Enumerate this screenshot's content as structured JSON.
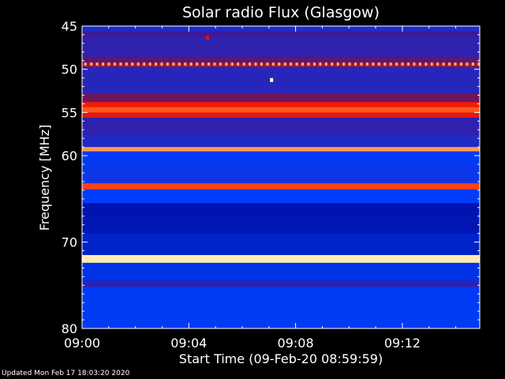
{
  "chart_data": {
    "type": "heatmap",
    "title": "Solar radio Flux (Glasgow)",
    "xlabel": "Start Time (09-Feb-20 08:59:59)",
    "ylabel": "Frequency [MHz]",
    "ylim": [
      45,
      80
    ],
    "y_inverted": true,
    "y_ticks": [
      "45",
      "50",
      "55",
      "60",
      "70",
      "80"
    ],
    "x_ticks": [
      "09:00",
      "09:04",
      "09:08",
      "09:12"
    ],
    "x_tick_minutes": [
      0,
      4,
      8,
      12
    ],
    "x_range_minutes": [
      0,
      14.9
    ],
    "grid": false,
    "colormap": [
      "#00008c",
      "#0040ff",
      "#3a1a9a",
      "#8a1040",
      "#ff1e00",
      "#ff9040",
      "#ffffc8"
    ],
    "bands": [
      {
        "from": 45.0,
        "to": 45.6,
        "level": 0.25
      },
      {
        "from": 45.6,
        "to": 46.3,
        "level": 0.33
      },
      {
        "from": 46.3,
        "to": 48.6,
        "level": 0.3
      },
      {
        "from": 48.6,
        "to": 49.3,
        "level": 0.42
      },
      {
        "from": 49.3,
        "to": 49.7,
        "level": 0.55
      },
      {
        "from": 49.7,
        "to": 52.8,
        "level": 0.28
      },
      {
        "from": 52.8,
        "to": 53.8,
        "level": 0.45
      },
      {
        "from": 53.8,
        "to": 54.4,
        "level": 0.65
      },
      {
        "from": 54.4,
        "to": 55.0,
        "level": 0.75
      },
      {
        "from": 55.0,
        "to": 55.6,
        "level": 0.62
      },
      {
        "from": 55.6,
        "to": 57.6,
        "level": 0.3
      },
      {
        "from": 57.6,
        "to": 59.0,
        "level": 0.26
      },
      {
        "from": 59.0,
        "to": 59.5,
        "level": 0.85
      },
      {
        "from": 59.5,
        "to": 61.0,
        "level": 0.15
      },
      {
        "from": 61.0,
        "to": 62.5,
        "level": 0.2
      },
      {
        "from": 62.5,
        "to": 63.2,
        "level": 0.22
      },
      {
        "from": 63.2,
        "to": 63.9,
        "level": 0.72
      },
      {
        "from": 63.9,
        "to": 65.5,
        "level": 0.16
      },
      {
        "from": 65.5,
        "to": 67.0,
        "level": 0.05
      },
      {
        "from": 67.0,
        "to": 69.0,
        "level": 0.06
      },
      {
        "from": 69.0,
        "to": 71.5,
        "level": 0.09
      },
      {
        "from": 71.5,
        "to": 72.4,
        "level": 0.97
      },
      {
        "from": 72.4,
        "to": 74.5,
        "level": 0.13
      },
      {
        "from": 74.5,
        "to": 75.2,
        "level": 0.3
      },
      {
        "from": 75.2,
        "to": 80.0,
        "level": 0.15
      }
    ],
    "pulse_row": {
      "frequency": 49.4,
      "interval_minutes": 0.22,
      "level": 0.88
    },
    "spots": [
      {
        "minute": 7.1,
        "frequency": 51.2,
        "level": 1.0
      },
      {
        "minute": 4.7,
        "frequency": 46.3,
        "level": 0.6
      }
    ]
  },
  "footer": {
    "updated": "Updated Mon Feb 17 18:03:20 2020"
  }
}
